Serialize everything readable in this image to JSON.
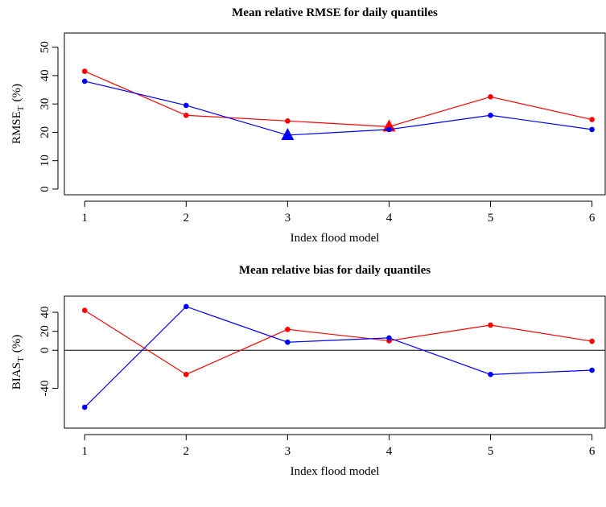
{
  "chart_data": [
    {
      "type": "line",
      "title": "Mean relative RMSE for daily quantiles",
      "xlabel": "Index flood model",
      "ylabel": "RMSE",
      "ylabel_sub": "T",
      "ylabel_suffix": "(%)",
      "x": [
        1,
        2,
        3,
        4,
        5,
        6
      ],
      "xlim": [
        0.8,
        6.13
      ],
      "xticks": [
        1,
        2,
        3,
        4,
        5,
        6
      ],
      "ylim": [
        -2,
        55
      ],
      "yticks": [
        0,
        10,
        20,
        30,
        40,
        50
      ],
      "series": [
        {
          "color": "red",
          "values": [
            41.5,
            26,
            24,
            22,
            32.5,
            24.5
          ],
          "highlight_x": 4
        },
        {
          "color": "blue",
          "values": [
            38,
            29.5,
            19,
            21,
            26,
            21
          ],
          "highlight_x": 3
        }
      ]
    },
    {
      "type": "line",
      "title": "Mean relative bias for daily quantiles",
      "xlabel": "Index flood model",
      "ylabel": "BIAS",
      "ylabel_sub": "T",
      "ylabel_suffix": "(%)",
      "x": [
        1,
        2,
        3,
        4,
        5,
        6
      ],
      "xlim": [
        0.8,
        6.13
      ],
      "xticks": [
        1,
        2,
        3,
        4,
        5,
        6
      ],
      "ylim": [
        -82,
        57
      ],
      "yticks": [
        -40,
        0,
        20,
        40
      ],
      "hline": 0,
      "series": [
        {
          "color": "red",
          "values": [
            42,
            -25.5,
            22,
            10,
            26.5,
            9.5
          ]
        },
        {
          "color": "blue",
          "values": [
            -60,
            46,
            8.5,
            13,
            -25.5,
            -21
          ]
        }
      ]
    }
  ]
}
